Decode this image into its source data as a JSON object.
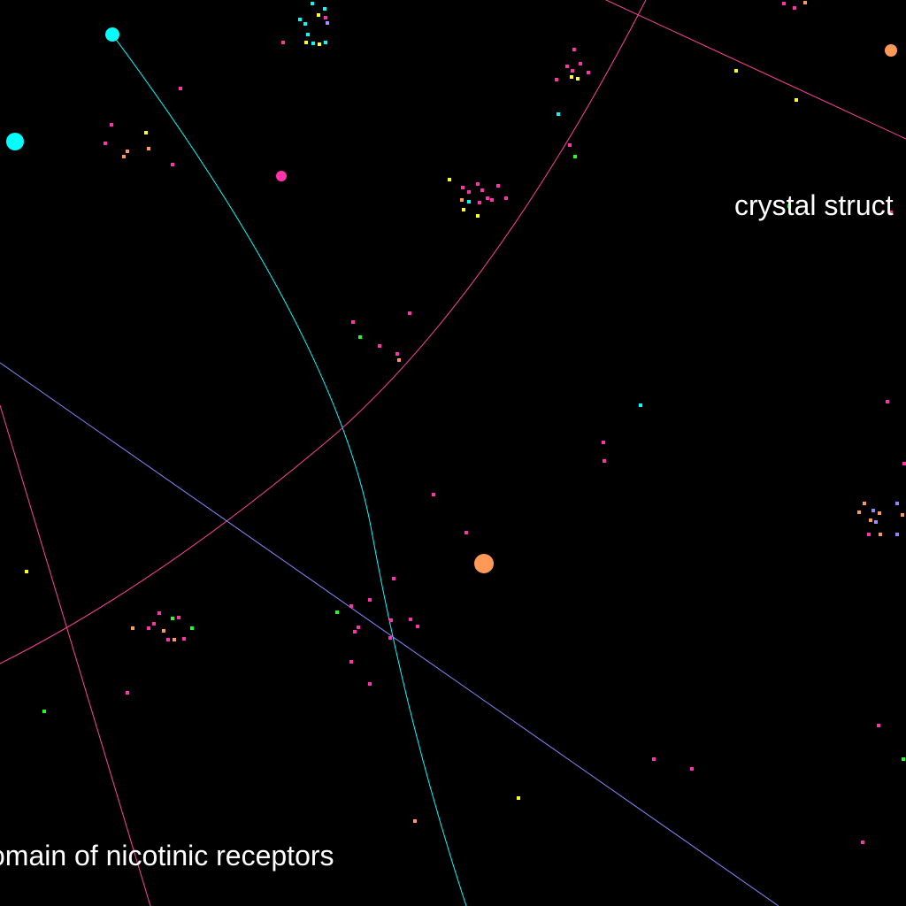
{
  "labels": {
    "crystal": "crystal struct",
    "nicotinic": "omain of nicotinic receptors"
  },
  "colors": {
    "background": "#000000",
    "label": "#ffffff",
    "cyan": "#00ffff",
    "magenta": "#ff33aa",
    "pink": "#ff4499",
    "blue": "#8888ff",
    "orange": "#ff9955",
    "yellow": "#ffff22",
    "green": "#22ff22",
    "lavender": "#aa88ff"
  }
}
